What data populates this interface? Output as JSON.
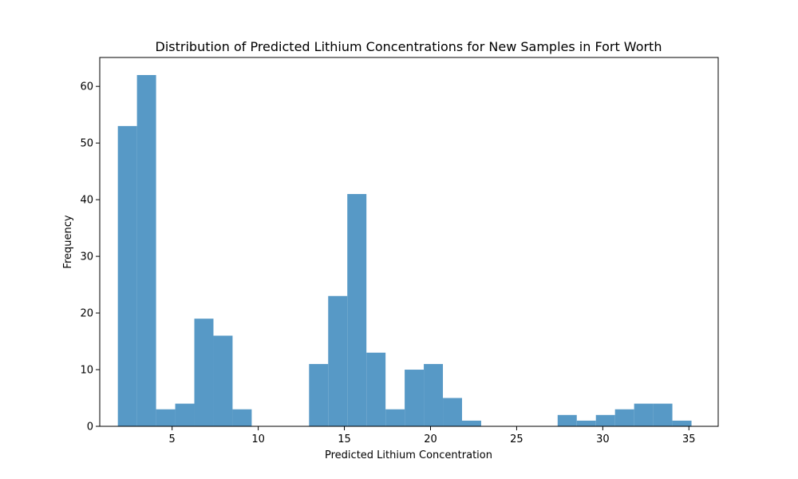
{
  "chart_data": {
    "type": "bar",
    "title": "Distribution of Predicted Lithium Concentrations for New Samples in Fort Worth",
    "xlabel": "Predicted Lithium Concentration",
    "ylabel": "Frequency",
    "xlim": [
      0.8,
      36.7
    ],
    "ylim": [
      0,
      65.1
    ],
    "xticks": [
      5,
      10,
      15,
      20,
      25,
      30,
      35
    ],
    "yticks": [
      0,
      10,
      20,
      30,
      40,
      50,
      60
    ],
    "bar_color": "#5799c6",
    "grid": false,
    "bin_start": 1.85,
    "bin_width": 1.11,
    "counts": [
      53,
      62,
      3,
      4,
      19,
      16,
      3,
      0,
      0,
      0,
      11,
      23,
      41,
      13,
      3,
      10,
      11,
      5,
      1,
      0,
      0,
      0,
      0,
      2,
      1,
      2,
      3,
      4,
      4,
      1
    ]
  }
}
